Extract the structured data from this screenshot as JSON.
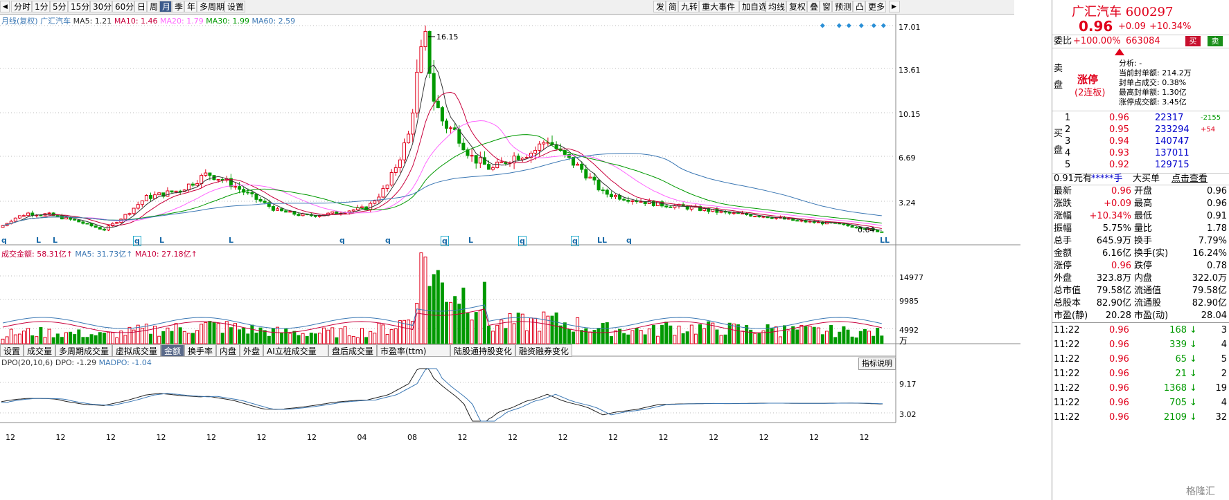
{
  "toolbar": {
    "left_items": [
      "分时",
      "1分",
      "5分",
      "15分",
      "30分",
      "60分",
      "日",
      "周",
      "月",
      "季",
      "年",
      "多周期",
      "设置"
    ],
    "active": "月",
    "right_items": [
      "发",
      "简",
      "九转",
      "重大事件",
      "加自选",
      "均线",
      "复权",
      "叠",
      "窗",
      "预测",
      "凸",
      "更多"
    ]
  },
  "legend": {
    "prefix": "月线(复权)",
    "name": "广汇汽车",
    "ma5": "MA5: 1.21",
    "ma10": "MA10: 1.46",
    "ma20": "MA20: 1.79",
    "ma30": "MA30: 1.99",
    "ma60": "MA60: 2.59"
  },
  "price_axis": [
    "17.01",
    "13.61",
    "10.15",
    "6.69",
    "3.24"
  ],
  "price_annotations": {
    "high": "16.15",
    "low": "0.64"
  },
  "volume_legend": {
    "label": "成交金额: 58.31亿↑",
    "ma5": "MA5: 31.73亿↑",
    "ma10": "MA10: 27.18亿↑"
  },
  "volume_axis": [
    "14977",
    "9985",
    "4992"
  ],
  "volume_unit": "万",
  "indicator_tabs": [
    "设置",
    "成交量",
    "多周期成交量",
    "虚拟成交量",
    "金额",
    "换手率",
    "内盘",
    "外盘",
    "AI立桩成交量",
    "盘后成交量",
    "市盈率(ttm)",
    "陆股通持股变化",
    "融资融券变化"
  ],
  "active_tab": "金额",
  "dpo_legend": {
    "label": "DPO(20,10,6)",
    "dpo": "DPO: -1.29",
    "madpo": "MADPO: -1.04"
  },
  "dpo_axis": [
    "9.17",
    "3.02"
  ],
  "indicator_help": "指标说明",
  "x_axis": [
    "12",
    "12",
    "12",
    "12",
    "12",
    "12",
    "12",
    "04",
    "08",
    "12",
    "12",
    "12",
    "12",
    "12",
    "12",
    "12",
    "12",
    "12"
  ],
  "bottom_markers": [
    "q",
    "L",
    "L",
    "q",
    "L",
    "L",
    "q",
    "q",
    "q",
    "L",
    "q",
    "q",
    "LL",
    "q",
    "LL"
  ],
  "chart_data": {
    "type": "candlestick",
    "title": "月线(复权) 广汇汽车",
    "ylim": [
      0.64,
      17.01
    ],
    "high_label": 16.15,
    "low_label": 0.64,
    "moving_averages": [
      {
        "name": "MA5",
        "value": 1.21
      },
      {
        "name": "MA10",
        "value": 1.46
      },
      {
        "name": "MA20",
        "value": 1.79
      },
      {
        "name": "MA30",
        "value": 1.99
      },
      {
        "name": "MA60",
        "value": 2.59
      }
    ]
  },
  "quote": {
    "title": "广汇汽车 600297",
    "price": "0.96",
    "change": "+0.09",
    "change_pct": "+10.34%",
    "weibi_label": "委比",
    "weibi": "+100.00%",
    "weicha": "663084",
    "buy_btn": "买",
    "sell_btn": "卖",
    "limit_up": "涨停",
    "limit_days": "(2连板)",
    "analysis": "分析: -",
    "seal_amount": "当前封单额: 214.2万",
    "seal_ratio": "封单占成交: 0.38%",
    "max_seal": "最高封单额: 1.30亿",
    "limit_turnover": "涨停成交额: 3.45亿",
    "sell_label": "卖盘",
    "buy_label": "买盘",
    "bids": [
      {
        "lvl": "1",
        "price": "0.96",
        "vol": "22317",
        "chg": "-2155"
      },
      {
        "lvl": "2",
        "price": "0.95",
        "vol": "233294",
        "chg": "+54"
      },
      {
        "lvl": "3",
        "price": "0.94",
        "vol": "140747",
        "chg": ""
      },
      {
        "lvl": "4",
        "price": "0.93",
        "vol": "137011",
        "chg": ""
      },
      {
        "lvl": "5",
        "price": "0.92",
        "vol": "129715",
        "chg": ""
      }
    ],
    "bigorder": {
      "price": "0.91元有",
      "stars": "*****手",
      "bigbuy": "大买单",
      "link": "点击查看"
    },
    "stats": [
      [
        "最新",
        "0.96",
        "开盘",
        "0.96"
      ],
      [
        "涨跌",
        "+0.09",
        "最高",
        "0.96"
      ],
      [
        "涨幅",
        "+10.34%",
        "最低",
        "0.91"
      ],
      [
        "振幅",
        "5.75%",
        "量比",
        "1.78"
      ],
      [
        "总手",
        "645.9万",
        "换手",
        "7.79%"
      ],
      [
        "金额",
        "6.16亿",
        "换手(实)",
        "16.24%"
      ],
      [
        "涨停",
        "0.96",
        "跌停",
        "0.78"
      ],
      [
        "外盘",
        "323.8万",
        "内盘",
        "322.0万"
      ],
      [
        "总市值",
        "79.58亿",
        "流通值",
        "79.58亿"
      ],
      [
        "总股本",
        "82.90亿",
        "流通股",
        "82.90亿"
      ],
      [
        "市盈(静)",
        "20.28",
        "市盈(动)",
        "28.04"
      ]
    ],
    "ticks": [
      {
        "time": "11:22",
        "price": "0.96",
        "vol": "168",
        "n": "3"
      },
      {
        "time": "11:22",
        "price": "0.96",
        "vol": "339",
        "n": "4"
      },
      {
        "time": "11:22",
        "price": "0.96",
        "vol": "65",
        "n": "5"
      },
      {
        "time": "11:22",
        "price": "0.96",
        "vol": "21",
        "n": "2"
      },
      {
        "time": "11:22",
        "price": "0.96",
        "vol": "1368",
        "n": "19"
      },
      {
        "time": "11:22",
        "price": "0.96",
        "vol": "705",
        "n": "4"
      },
      {
        "time": "11:22",
        "price": "0.96",
        "vol": "2109",
        "n": "32"
      }
    ]
  },
  "watermark": "格隆汇"
}
